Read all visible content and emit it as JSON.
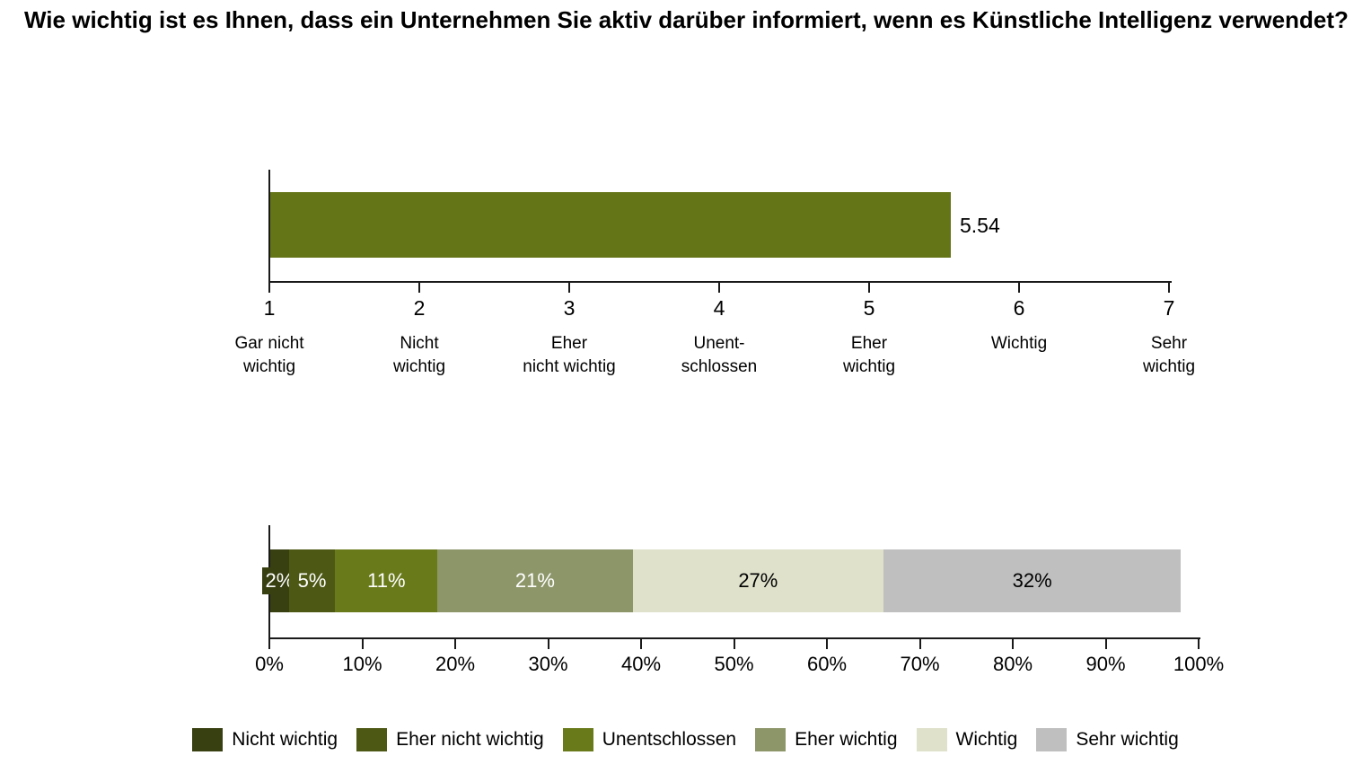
{
  "title": "Wie wichtig ist es Ihnen, dass ein Unternehmen Sie aktiv darüber informiert, wenn es Künstliche Intelligenz verwendet?",
  "colors": {
    "axis": "#1a1a1a",
    "mean_bar": "#647517"
  },
  "chart_data": [
    {
      "type": "bar",
      "orientation": "horizontal",
      "value": 5.54,
      "value_label": "5.54",
      "xlim": [
        1,
        7
      ],
      "bar_color": "#647517",
      "x_ticks": [
        {
          "value": "1",
          "label": "Gar nicht\nwichtig"
        },
        {
          "value": "2",
          "label": "Nicht\nwichtig"
        },
        {
          "value": "3",
          "label": "Eher\nnicht wichtig"
        },
        {
          "value": "4",
          "label": "Unent-\nschlossen"
        },
        {
          "value": "5",
          "label": "Eher\nwichtig"
        },
        {
          "value": "6",
          "label": "Wichtig"
        },
        {
          "value": "7",
          "label": "Sehr\nwichtig"
        }
      ]
    },
    {
      "type": "bar",
      "orientation": "horizontal",
      "stacked": true,
      "xlim": [
        0,
        100
      ],
      "segments": [
        {
          "label": "Nicht wichtig",
          "value": 2,
          "display": "2%",
          "color": "#383F10",
          "text_color": "#ffffff",
          "label_background": true
        },
        {
          "label": "Eher nicht wichtig",
          "value": 5,
          "display": "5%",
          "color": "#4D5814",
          "text_color": "#ffffff",
          "label_background": false
        },
        {
          "label": "Unentschlossen",
          "value": 11,
          "display": "11%",
          "color": "#697A1A",
          "text_color": "#ffffff",
          "label_background": false
        },
        {
          "label": "Eher wichtig",
          "value": 21,
          "display": "21%",
          "color": "#8C9669",
          "text_color": "#ffffff",
          "label_background": false
        },
        {
          "label": "Wichtig",
          "value": 27,
          "display": "27%",
          "color": "#DFE1CB",
          "text_color": "#000000",
          "label_background": false
        },
        {
          "label": "Sehr wichtig",
          "value": 32,
          "display": "32%",
          "color": "#BFBFBF",
          "text_color": "#000000",
          "label_background": false
        }
      ],
      "x_ticks": [
        "0%",
        "10%",
        "20%",
        "30%",
        "40%",
        "50%",
        "60%",
        "70%",
        "80%",
        "90%",
        "100%"
      ]
    }
  ],
  "legend": {
    "items": [
      {
        "label": "Nicht wichtig",
        "color": "#383F10"
      },
      {
        "label": "Eher nicht wichtig",
        "color": "#4D5814"
      },
      {
        "label": "Unentschlossen",
        "color": "#697A1A"
      },
      {
        "label": "Eher wichtig",
        "color": "#8C9669"
      },
      {
        "label": "Wichtig",
        "color": "#DFE1CB"
      },
      {
        "label": "Sehr wichtig",
        "color": "#BFBFBF"
      }
    ]
  }
}
